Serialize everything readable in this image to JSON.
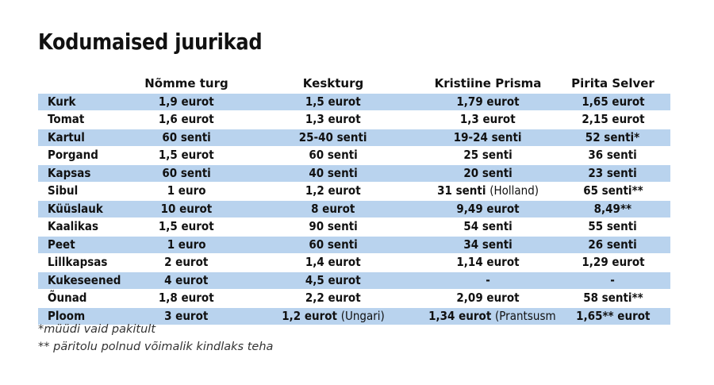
{
  "title": "Kodumaised juurikad",
  "columns": [
    "",
    "Nõmme turg",
    "Keskturg",
    "Kristiine Prisma",
    "Pirita Selver"
  ],
  "rows": [
    {
      "name": "Kurk",
      "cells": [
        {
          "v": "1,9 eurot"
        },
        {
          "v": "1,5 eurot"
        },
        {
          "v": "1,79 eurot"
        },
        {
          "v": "1,65 eurot"
        }
      ]
    },
    {
      "name": "Tomat",
      "cells": [
        {
          "v": "1,6 eurot"
        },
        {
          "v": "1,3 eurot"
        },
        {
          "v": "1,3 eurot"
        },
        {
          "v": "2,15 eurot"
        }
      ]
    },
    {
      "name": "Kartul",
      "cells": [
        {
          "v": "60 senti"
        },
        {
          "v": "25-40 senti"
        },
        {
          "v": "19-24 senti"
        },
        {
          "v": "52 senti*"
        }
      ]
    },
    {
      "name": "Porgand",
      "cells": [
        {
          "v": "1,5 eurot"
        },
        {
          "v": "60 senti"
        },
        {
          "v": "25 senti"
        },
        {
          "v": "36 senti"
        }
      ]
    },
    {
      "name": "Kapsas",
      "cells": [
        {
          "v": "60 senti"
        },
        {
          "v": "40 senti"
        },
        {
          "v": "20 senti"
        },
        {
          "v": "23 senti"
        }
      ]
    },
    {
      "name": "Sibul",
      "cells": [
        {
          "v": "1 euro"
        },
        {
          "v": "1,2 eurot"
        },
        {
          "v": "31 senti",
          "o": "(Holland)"
        },
        {
          "v": "65 senti**"
        }
      ]
    },
    {
      "name": "Küüslauk",
      "cells": [
        {
          "v": "10 eurot"
        },
        {
          "v": "8 eurot"
        },
        {
          "v": "9,49 eurot"
        },
        {
          "v": "8,49**"
        }
      ]
    },
    {
      "name": "Kaalikas",
      "cells": [
        {
          "v": "1,5 eurot"
        },
        {
          "v": "90 senti"
        },
        {
          "v": "54 senti"
        },
        {
          "v": "55 senti"
        }
      ]
    },
    {
      "name": "Peet",
      "cells": [
        {
          "v": "1 euro"
        },
        {
          "v": "60 senti"
        },
        {
          "v": "34 senti"
        },
        {
          "v": "26 senti"
        }
      ]
    },
    {
      "name": "Lillkapsas",
      "cells": [
        {
          "v": "2 eurot"
        },
        {
          "v": "1,4 eurot"
        },
        {
          "v": "1,14 eurot"
        },
        {
          "v": "1,29 eurot"
        }
      ]
    },
    {
      "name": "Kukeseened",
      "cells": [
        {
          "v": "4 eurot"
        },
        {
          "v": "4,5 eurot"
        },
        {
          "v": "-"
        },
        {
          "v": "-"
        }
      ]
    },
    {
      "name": "Õunad",
      "cells": [
        {
          "v": "1,8 eurot"
        },
        {
          "v": "2,2 eurot"
        },
        {
          "v": "2,09 eurot"
        },
        {
          "v": "58 senti**"
        }
      ]
    },
    {
      "name": "Ploom",
      "cells": [
        {
          "v": "3 eurot"
        },
        {
          "v": "1,2 eurot",
          "o": "(Ungari)"
        },
        {
          "v": "1,34  eurot",
          "o": "(Prantsusmaa)"
        },
        {
          "v": "1,65** eurot"
        }
      ]
    }
  ],
  "footnotes": [
    "*müüdi vaid pakitult",
    "** päritolu polnud võimalik kindlaks teha"
  ],
  "colors": {
    "row_shade": "#b9d3ee",
    "text": "#111111"
  }
}
